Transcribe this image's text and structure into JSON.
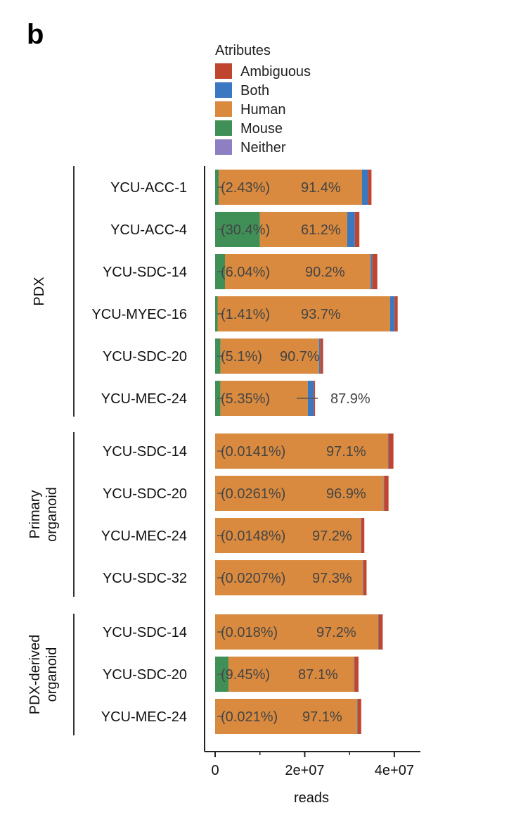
{
  "panel_label": "b",
  "chart_data": {
    "type": "bar",
    "orientation": "horizontal",
    "stacked": true,
    "legend": {
      "title": "Atributes",
      "placement": "top",
      "entries": [
        {
          "name": "Ambiguous",
          "color": "#c0452f"
        },
        {
          "name": "Both",
          "color": "#3a78c2"
        },
        {
          "name": "Human",
          "color": "#d98a3f"
        },
        {
          "name": "Mouse",
          "color": "#3f8f57"
        },
        {
          "name": "Neither",
          "color": "#8e7fc2"
        }
      ]
    },
    "groups": [
      {
        "name": "PDX",
        "label_lines": [
          "PDX"
        ],
        "categories": [
          0,
          1,
          2,
          3,
          4,
          5
        ]
      },
      {
        "name": "Primary organoid",
        "label_lines": [
          "Primary",
          "organoid"
        ],
        "categories": [
          6,
          7,
          8,
          9
        ]
      },
      {
        "name": "PDX-derived organoid",
        "label_lines": [
          "PDX-derived",
          "organoid"
        ],
        "categories": [
          10,
          11,
          12
        ]
      }
    ],
    "categories": [
      "YCU-ACC-1",
      "YCU-ACC-4",
      "YCU-SDC-14",
      "YCU-MYEC-16",
      "YCU-SDC-20",
      "YCU-MEC-24",
      "YCU-SDC-14",
      "YCU-SDC-20",
      "YCU-MEC-24",
      "YCU-SDC-32",
      "YCU-SDC-14",
      "YCU-SDC-20",
      "YCU-MEC-24"
    ],
    "stack_order": [
      "Mouse",
      "Human",
      "Both",
      "Ambiguous"
    ],
    "series": [
      {
        "name": "Mouse",
        "values": [
          800000,
          10000000,
          2200000,
          550000,
          1200000,
          1200000,
          5000,
          10000,
          5000,
          7000,
          7000,
          3000000,
          7000
        ]
      },
      {
        "name": "Human",
        "values": [
          32000000,
          19500000,
          32500000,
          38500000,
          22000000,
          19500000,
          38600000,
          37600000,
          32500000,
          33000000,
          36400000,
          28000000,
          31700000
        ]
      },
      {
        "name": "Both",
        "values": [
          1300000,
          1700000,
          400000,
          1000000,
          300000,
          1300000,
          100000,
          100000,
          100000,
          100000,
          100000,
          100000,
          100000
        ]
      },
      {
        "name": "Ambiguous",
        "values": [
          800000,
          1000000,
          1100000,
          700000,
          600000,
          300000,
          1100000,
          1000000,
          700000,
          700000,
          900000,
          900000,
          800000
        ]
      },
      {
        "name": "Neither",
        "values": [
          0,
          0,
          0,
          0,
          0,
          0,
          0,
          0,
          0,
          0,
          0,
          0,
          0
        ]
      }
    ],
    "annotations": {
      "mouse_pct": [
        "(2.43%)",
        "(30.4%)",
        "(6.04%)",
        "(1.41%)",
        "(5.1%)",
        "(5.35%)",
        "(0.0141%)",
        "(0.0261%)",
        "(0.0148%)",
        "(0.0207%)",
        "(0.018%)",
        "(9.45%)",
        "(0.021%)"
      ],
      "human_pct": [
        "91.4%",
        "61.2%",
        "90.2%",
        "93.7%",
        "90.7%",
        "87.9%",
        "97.1%",
        "96.9%",
        "97.2%",
        "97.3%",
        "97.2%",
        "87.1%",
        "97.1%"
      ]
    },
    "xlim": [
      0,
      43000000
    ],
    "xticks": [
      0,
      20000000,
      40000000
    ],
    "xtick_labels": [
      "0",
      "2e+07",
      "4e+07"
    ],
    "xlabel": "reads",
    "grid": false
  }
}
